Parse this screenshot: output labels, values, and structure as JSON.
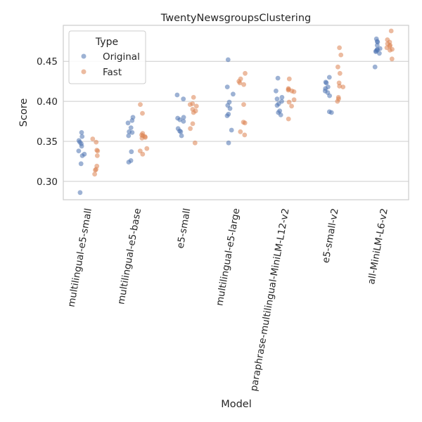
{
  "chart_data": {
    "type": "scatter",
    "title": "TwentyNewsgroupsClustering",
    "xlabel": "Model",
    "ylabel": "Score",
    "ylim": [
      0.277,
      0.495
    ],
    "yticks": [
      0.3,
      0.35,
      0.4,
      0.45
    ],
    "ytick_labels": [
      "0.30",
      "0.35",
      "0.40",
      "0.45"
    ],
    "grid": "horizontal",
    "legend": {
      "title": "Type",
      "placement": "top-left"
    },
    "categories": [
      "multilingual-e5-small",
      "multilingual-e5-base",
      "e5-small",
      "multilingual-e5-large",
      "paraphrase-multilingual-MiniLM-L12-v2",
      "e5-small-v2",
      "all-MiniLM-L6-v2"
    ],
    "series": [
      {
        "name": "Original",
        "color": "#4c72b0",
        "values": [
          [
            0.361,
            0.356,
            0.351,
            0.349,
            0.347,
            0.344,
            0.338,
            0.334,
            0.332,
            0.322,
            0.286
          ],
          [
            0.38,
            0.376,
            0.373,
            0.367,
            0.362,
            0.361,
            0.357,
            0.337,
            0.326,
            0.324
          ],
          [
            0.408,
            0.403,
            0.38,
            0.379,
            0.377,
            0.375,
            0.366,
            0.363,
            0.362,
            0.357
          ],
          [
            0.452,
            0.418,
            0.409,
            0.399,
            0.395,
            0.391,
            0.384,
            0.382,
            0.364,
            0.348
          ],
          [
            0.429,
            0.413,
            0.405,
            0.403,
            0.4,
            0.397,
            0.395,
            0.388,
            0.386,
            0.383
          ],
          [
            0.43,
            0.424,
            0.423,
            0.418,
            0.416,
            0.413,
            0.411,
            0.407,
            0.387,
            0.386
          ],
          [
            0.478,
            0.475,
            0.474,
            0.47,
            0.466,
            0.465,
            0.464,
            0.463,
            0.462,
            0.46,
            0.443
          ]
        ]
      },
      {
        "name": "Fast",
        "color": "#dd8452",
        "values": [
          [
            0.353,
            0.349,
            0.339,
            0.338,
            0.332,
            0.319,
            0.315,
            0.314,
            0.309
          ],
          [
            0.396,
            0.385,
            0.36,
            0.358,
            0.357,
            0.356,
            0.355,
            0.354,
            0.341,
            0.338,
            0.334
          ],
          [
            0.405,
            0.397,
            0.396,
            0.394,
            0.39,
            0.388,
            0.386,
            0.372,
            0.366,
            0.348
          ],
          [
            0.435,
            0.428,
            0.425,
            0.423,
            0.421,
            0.396,
            0.374,
            0.373,
            0.362,
            0.358
          ],
          [
            0.428,
            0.416,
            0.415,
            0.414,
            0.413,
            0.412,
            0.402,
            0.399,
            0.394,
            0.378
          ],
          [
            0.467,
            0.458,
            0.443,
            0.435,
            0.423,
            0.419,
            0.418,
            0.405,
            0.403,
            0.4
          ],
          [
            0.488,
            0.477,
            0.474,
            0.472,
            0.47,
            0.469,
            0.467,
            0.465,
            0.464,
            0.453
          ]
        ]
      }
    ]
  }
}
